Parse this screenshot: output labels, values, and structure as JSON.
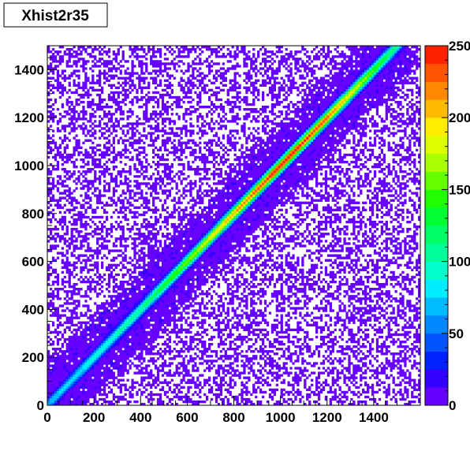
{
  "chart_data": {
    "type": "heatmap",
    "title": "Xhist2r35",
    "xlabel": "",
    "ylabel": "",
    "xlim": [
      0,
      1600
    ],
    "ylim": [
      0,
      1500
    ],
    "x_ticks": [
      0,
      200,
      400,
      600,
      800,
      1000,
      1200,
      1400
    ],
    "y_ticks": [
      0,
      200,
      400,
      600,
      800,
      1000,
      1200,
      1400
    ],
    "z_range": [
      0,
      250
    ],
    "z_ticks": [
      0,
      50,
      100,
      150,
      200,
      250
    ],
    "z_labels": [
      "0",
      "50",
      "100",
      "150",
      "200",
      "250"
    ],
    "bins": [
      160,
      150
    ],
    "colorbar_levels": 20,
    "palette": [
      "#6600ff",
      "#3300ff",
      "#0022ff",
      "#0055ff",
      "#0088ff",
      "#00bbff",
      "#00eeff",
      "#00ffcc",
      "#00ff99",
      "#00ff66",
      "#00ff33",
      "#22ff00",
      "#66ff00",
      "#aaff00",
      "#ddff00",
      "#ffee00",
      "#ffbb00",
      "#ff8800",
      "#ff5500",
      "#ff2200"
    ],
    "diagonal_band": {
      "from": [
        0,
        0
      ],
      "to": [
        1500,
        1500
      ],
      "peak_counts": [
        [
          0,
          70
        ],
        [
          400,
          110
        ],
        [
          600,
          160
        ],
        [
          800,
          210
        ],
        [
          1000,
          250
        ],
        [
          1200,
          230
        ],
        [
          1400,
          150
        ],
        [
          1500,
          110
        ]
      ]
    },
    "background_occupancy": 0.45,
    "grid": false,
    "legend": "colorbar-right"
  }
}
